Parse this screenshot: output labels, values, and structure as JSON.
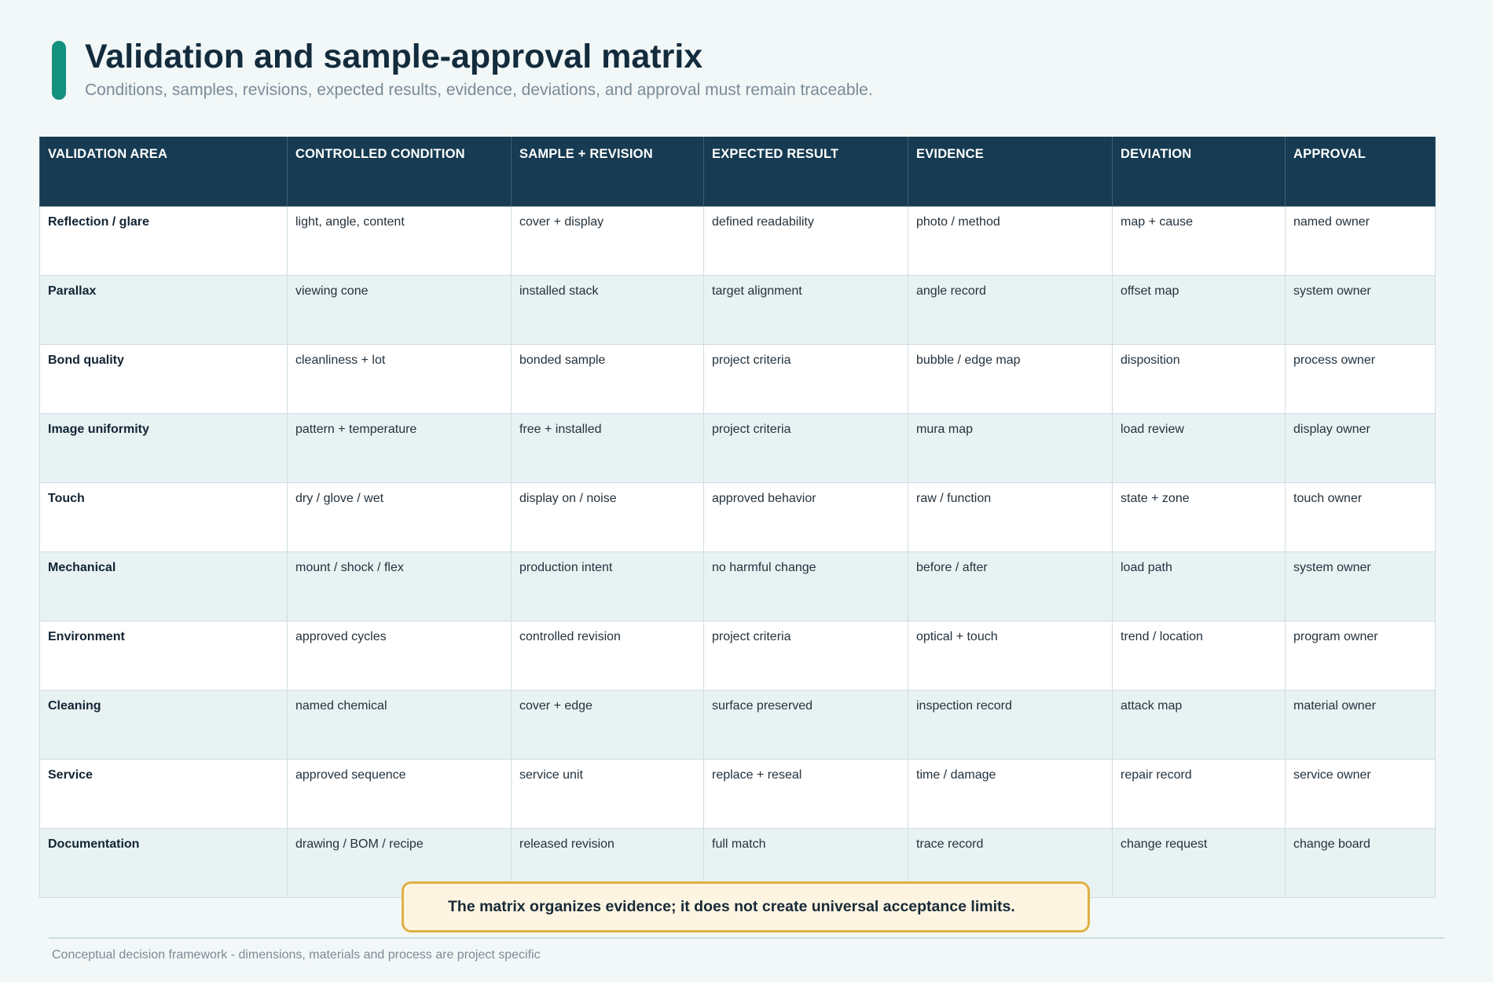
{
  "header": {
    "title": "Validation and sample-approval matrix",
    "subtitle": "Conditions, samples, revisions, expected results, evidence, deviations, and approval must remain traceable."
  },
  "table": {
    "columns": [
      "VALIDATION AREA",
      "CONTROLLED CONDITION",
      "SAMPLE + REVISION",
      "EXPECTED RESULT",
      "EVIDENCE",
      "DEVIATION",
      "APPROVAL"
    ],
    "rows": [
      [
        "Reflection / glare",
        "light, angle, content",
        "cover + display",
        "defined readability",
        "photo / method",
        "map + cause",
        "named owner"
      ],
      [
        "Parallax",
        "viewing cone",
        "installed stack",
        "target alignment",
        "angle record",
        "offset map",
        "system owner"
      ],
      [
        "Bond quality",
        "cleanliness + lot",
        "bonded sample",
        "project criteria",
        "bubble / edge map",
        "disposition",
        "process owner"
      ],
      [
        "Image uniformity",
        "pattern + temperature",
        "free + installed",
        "project criteria",
        "mura map",
        "load review",
        "display owner"
      ],
      [
        "Touch",
        "dry / glove / wet",
        "display on / noise",
        "approved behavior",
        "raw / function",
        "state + zone",
        "touch owner"
      ],
      [
        "Mechanical",
        "mount / shock / flex",
        "production intent",
        "no harmful change",
        "before / after",
        "load path",
        "system owner"
      ],
      [
        "Environment",
        "approved cycles",
        "controlled revision",
        "project criteria",
        "optical + touch",
        "trend / location",
        "program owner"
      ],
      [
        "Cleaning",
        "named chemical",
        "cover + edge",
        "surface preserved",
        "inspection record",
        "attack map",
        "material owner"
      ],
      [
        "Service",
        "approved sequence",
        "service unit",
        "replace + reseal",
        "time / damage",
        "repair record",
        "service owner"
      ],
      [
        "Documentation",
        "drawing / BOM / recipe",
        "released revision",
        "full match",
        "trace record",
        "change request",
        "change board"
      ]
    ]
  },
  "callout": {
    "text": "The matrix organizes evidence; it does not create universal acceptance limits."
  },
  "footer": {
    "note": "Conceptual decision framework - dimensions, materials and process are project specific"
  },
  "colors": {
    "accent": "#14907f",
    "header_bg": "#163b52",
    "callout_border": "#deb143",
    "callout_bg": "#fdf5e2"
  }
}
